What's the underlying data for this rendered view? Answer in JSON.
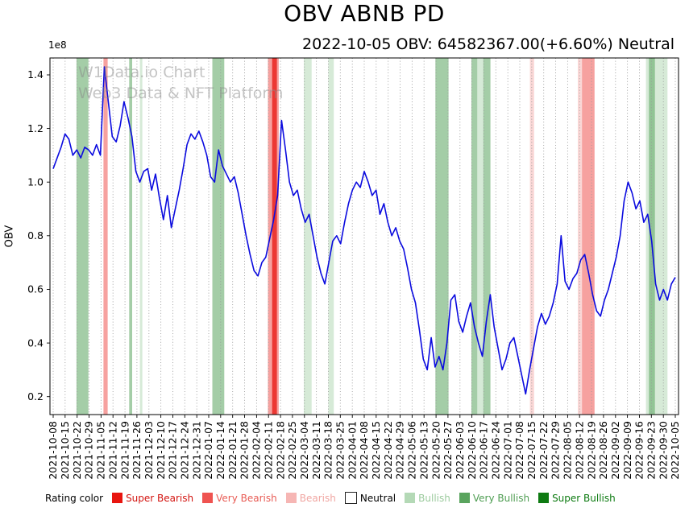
{
  "watermark": {
    "line1": "W1Data.io Chart",
    "line2": "Web3 Data & NFT Platform"
  },
  "rating_colors": {
    "super_bearish": "#e8150f",
    "very_bearish": "#ef5350",
    "bearish": "#f6b6b4",
    "neutral": "#ffffff",
    "bullish": "#b4d9b6",
    "very_bullish": "#5aa45e",
    "super_bullish": "#0e7a12"
  },
  "legend": {
    "label": "Rating color",
    "items": [
      {
        "key": "super_bearish",
        "label": "Super Bearish",
        "swatch": "#e8150f",
        "label_color": "#d31410"
      },
      {
        "key": "very_bearish",
        "label": "Very Bearish",
        "swatch": "#ef5350",
        "label_color": "#e85b54"
      },
      {
        "key": "bearish",
        "label": "Bearish",
        "swatch": "#f6b6b4",
        "label_color": "#f0a6a2"
      },
      {
        "key": "neutral",
        "label": "Neutral",
        "swatch": "#ffffff",
        "label_color": "#000000"
      },
      {
        "key": "bullish",
        "label": "Bullish",
        "swatch": "#b4d9b6",
        "label_color": "#9ccb9e"
      },
      {
        "key": "very_bullish",
        "label": "Very Bullish",
        "swatch": "#5aa45e",
        "label_color": "#4f9e53"
      },
      {
        "key": "super_bullish",
        "label": "Super Bullish",
        "swatch": "#0e7a12",
        "label_color": "#0c7a10"
      }
    ]
  },
  "chart_data": {
    "type": "line",
    "title": "OBV ABNB PD",
    "subtitle": "2022-10-05 OBV: 64582367.00(+6.60%) Neutral",
    "ylabel": "OBV",
    "y_offset_label": "1e8",
    "y_unit": "1e8",
    "line_color": "#0b0bdf",
    "grid": "dotted-vertical-weekly",
    "legend_position": "bottom",
    "ylim": [
      0.133,
      1.463
    ],
    "y_ticks": [
      0.2,
      0.4,
      0.6,
      0.8,
      1.0,
      1.2,
      1.4
    ],
    "x_tick_labels": [
      "2021-10-08",
      "2021-10-15",
      "2021-10-22",
      "2021-10-29",
      "2021-11-05",
      "2021-11-12",
      "2021-11-19",
      "2021-11-26",
      "2021-12-03",
      "2021-12-10",
      "2021-12-17",
      "2021-12-24",
      "2021-12-31",
      "2022-01-07",
      "2022-01-14",
      "2022-01-21",
      "2022-01-28",
      "2022-02-04",
      "2022-02-11",
      "2022-02-18",
      "2022-02-25",
      "2022-03-04",
      "2022-03-11",
      "2022-03-18",
      "2022-03-25",
      "2022-04-01",
      "2022-04-08",
      "2022-04-15",
      "2022-04-22",
      "2022-04-29",
      "2022-05-06",
      "2022-05-13",
      "2022-05-20",
      "2022-05-27",
      "2022-06-03",
      "2022-06-10",
      "2022-06-17",
      "2022-06-24",
      "2022-07-01",
      "2022-07-08",
      "2022-07-15",
      "2022-07-22",
      "2022-07-29",
      "2022-08-05",
      "2022-08-12",
      "2022-08-19",
      "2022-08-26",
      "2022-09-02",
      "2022-09-09",
      "2022-09-16",
      "2022-09-23",
      "2022-09-30",
      "2022-10-05"
    ],
    "values_1e8": [
      1.05,
      1.09,
      1.13,
      1.18,
      1.16,
      1.1,
      1.12,
      1.09,
      1.13,
      1.12,
      1.1,
      1.14,
      1.1,
      1.43,
      1.3,
      1.17,
      1.15,
      1.21,
      1.3,
      1.24,
      1.17,
      1.04,
      1.0,
      1.04,
      1.05,
      0.97,
      1.03,
      0.94,
      0.86,
      0.95,
      0.83,
      0.9,
      0.97,
      1.05,
      1.14,
      1.18,
      1.16,
      1.19,
      1.15,
      1.1,
      1.02,
      1.0,
      1.12,
      1.06,
      1.03,
      1.0,
      1.02,
      0.96,
      0.88,
      0.8,
      0.73,
      0.67,
      0.65,
      0.7,
      0.72,
      0.79,
      0.86,
      0.95,
      1.23,
      1.12,
      1.0,
      0.95,
      0.97,
      0.9,
      0.85,
      0.88,
      0.8,
      0.72,
      0.66,
      0.62,
      0.7,
      0.78,
      0.8,
      0.77,
      0.85,
      0.92,
      0.97,
      1.0,
      0.98,
      1.04,
      1.0,
      0.95,
      0.97,
      0.88,
      0.92,
      0.85,
      0.8,
      0.83,
      0.78,
      0.75,
      0.68,
      0.6,
      0.55,
      0.45,
      0.34,
      0.3,
      0.42,
      0.31,
      0.35,
      0.3,
      0.4,
      0.56,
      0.58,
      0.48,
      0.44,
      0.5,
      0.55,
      0.46,
      0.4,
      0.35,
      0.48,
      0.58,
      0.46,
      0.38,
      0.3,
      0.34,
      0.4,
      0.42,
      0.35,
      0.28,
      0.21,
      0.3,
      0.38,
      0.46,
      0.51,
      0.47,
      0.5,
      0.55,
      0.62,
      0.8,
      0.63,
      0.6,
      0.64,
      0.66,
      0.71,
      0.73,
      0.66,
      0.58,
      0.52,
      0.5,
      0.56,
      0.6,
      0.66,
      0.72,
      0.8,
      0.93,
      1.0,
      0.96,
      0.9,
      0.93,
      0.85,
      0.88,
      0.78,
      0.62,
      0.56,
      0.6,
      0.56,
      0.62,
      0.645
    ],
    "bands": [
      {
        "start_week": 1.95,
        "end_week": 2.95,
        "rating": "very_bullish"
      },
      {
        "start_week": 4.2,
        "end_week": 4.55,
        "rating": "very_bearish"
      },
      {
        "start_week": 6.35,
        "end_week": 6.6,
        "rating": "very_bullish"
      },
      {
        "start_week": 7.25,
        "end_week": 7.45,
        "rating": "bullish"
      },
      {
        "start_week": 13.3,
        "end_week": 14.3,
        "rating": "very_bullish"
      },
      {
        "start_week": 17.95,
        "end_week": 18.85,
        "rating": "very_bearish"
      },
      {
        "start_week": 18.3,
        "end_week": 18.7,
        "rating": "super_bearish"
      },
      {
        "start_week": 20.95,
        "end_week": 21.6,
        "rating": "bullish"
      },
      {
        "start_week": 23.0,
        "end_week": 23.45,
        "rating": "bullish"
      },
      {
        "start_week": 31.95,
        "end_week": 33.05,
        "rating": "very_bullish"
      },
      {
        "start_week": 34.95,
        "end_week": 35.45,
        "rating": "very_bullish"
      },
      {
        "start_week": 35.45,
        "end_week": 35.95,
        "rating": "bullish"
      },
      {
        "start_week": 35.95,
        "end_week": 36.55,
        "rating": "very_bullish"
      },
      {
        "start_week": 39.85,
        "end_week": 40.2,
        "rating": "bearish"
      },
      {
        "start_week": 43.85,
        "end_week": 44.2,
        "rating": "bearish"
      },
      {
        "start_week": 44.2,
        "end_week": 45.25,
        "rating": "very_bearish"
      },
      {
        "start_week": 49.55,
        "end_week": 51.35,
        "rating": "bullish"
      },
      {
        "start_week": 49.8,
        "end_week": 50.3,
        "rating": "very_bullish"
      }
    ]
  }
}
